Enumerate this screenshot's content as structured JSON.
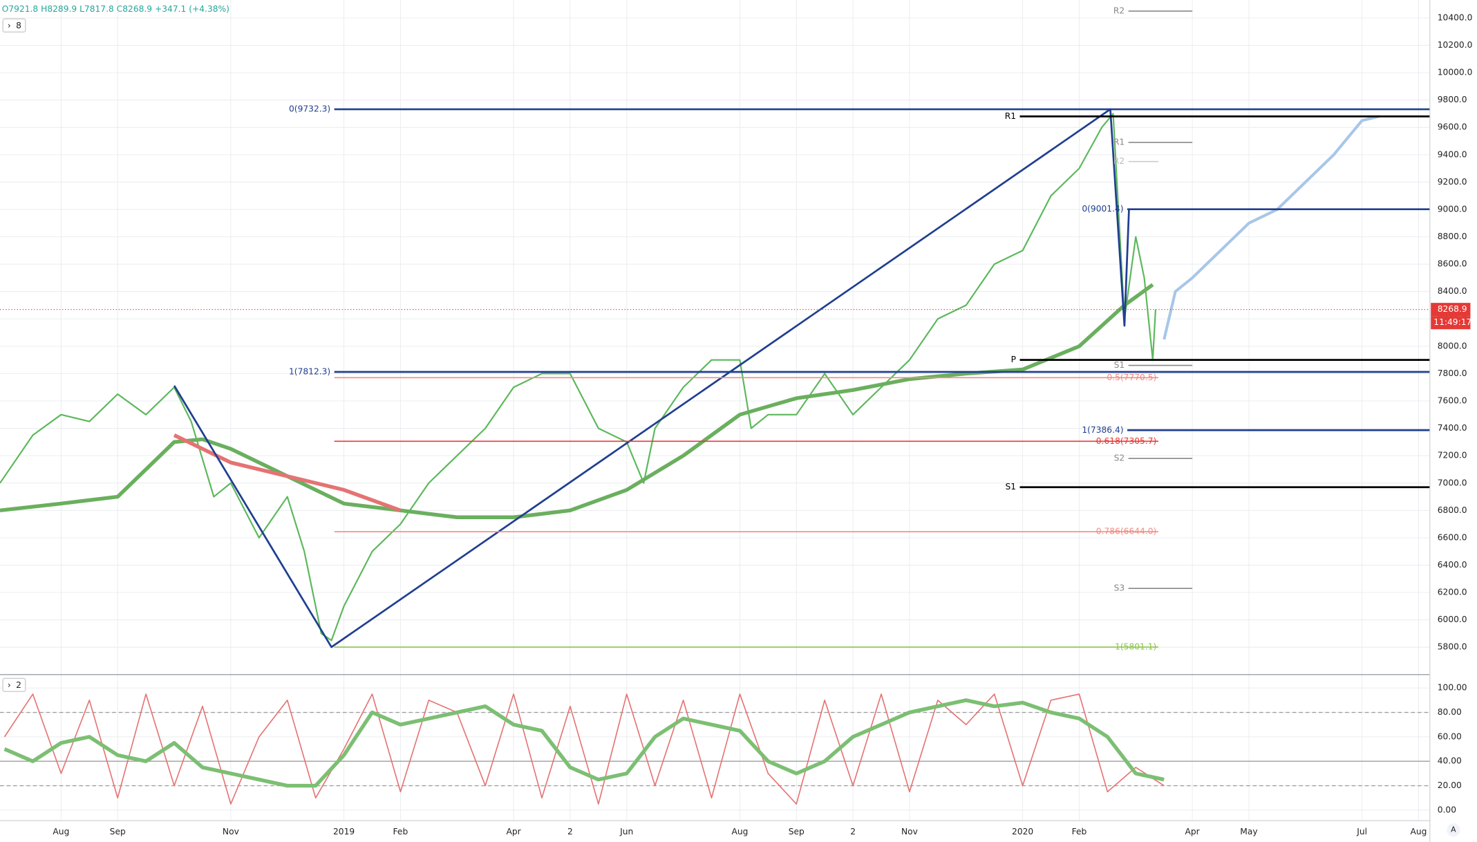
{
  "header": {
    "ohlc": "O7921.8 H8289.9 L7817.8 C8268.9 +347.1 (+4.38%)",
    "main_pane_badge": "8",
    "osc_pane_badge": "2",
    "clock": "11:49:17",
    "auto_button": "A"
  },
  "chart_data": [
    {
      "type": "line",
      "xlim": [
        -1.08,
        24.2
      ],
      "ylim": [
        5600,
        10531
      ],
      "xticks": [
        {
          "value": 0,
          "label": "Aug"
        },
        {
          "value": 1,
          "label": "Sep"
        },
        {
          "value": 3,
          "label": "Nov"
        },
        {
          "value": 5,
          "label": "2019"
        },
        {
          "value": 6,
          "label": "Feb"
        },
        {
          "value": 8,
          "label": "Apr"
        },
        {
          "value": 9,
          "label": "2"
        },
        {
          "value": 10,
          "label": "Jun"
        },
        {
          "value": 12,
          "label": "Aug"
        },
        {
          "value": 13,
          "label": "Sep"
        },
        {
          "value": 14,
          "label": "2"
        },
        {
          "value": 15,
          "label": "Nov"
        },
        {
          "value": 17,
          "label": "2020"
        },
        {
          "value": 18,
          "label": "Feb"
        },
        {
          "value": 20,
          "label": "Apr"
        },
        {
          "value": 21,
          "label": "May"
        },
        {
          "value": 23,
          "label": "Jul"
        },
        {
          "value": 24,
          "label": "Aug"
        }
      ],
      "yticks": [
        {
          "value": 5800,
          "label": "5800.0"
        },
        {
          "value": 6000,
          "label": "6000.0"
        },
        {
          "value": 6200,
          "label": "6200.0"
        },
        {
          "value": 6400,
          "label": "6400.0"
        },
        {
          "value": 6600,
          "label": "6600.0"
        },
        {
          "value": 6800,
          "label": "6800.0"
        },
        {
          "value": 7000,
          "label": "7000.0"
        },
        {
          "value": 7200,
          "label": "7200.0"
        },
        {
          "value": 7400,
          "label": "7400.0"
        },
        {
          "value": 7600,
          "label": "7600.0"
        },
        {
          "value": 7800,
          "label": "7800.0"
        },
        {
          "value": 8000,
          "label": "8000.0"
        },
        {
          "value": 8200,
          "label": "8200.0"
        },
        {
          "value": 8400,
          "label": "8400.0"
        },
        {
          "value": 8600,
          "label": "8600.0"
        },
        {
          "value": 8800,
          "label": "8800.0"
        },
        {
          "value": 9000,
          "label": "9000.0"
        },
        {
          "value": 9200,
          "label": "9200.0"
        },
        {
          "value": 9400,
          "label": "9400.0"
        },
        {
          "value": 9600,
          "label": "9600.0"
        },
        {
          "value": 9800,
          "label": "9800.0"
        },
        {
          "value": 10000,
          "label": "10000.0"
        },
        {
          "value": 10200,
          "label": "10200.0"
        },
        {
          "value": 10400,
          "label": "10400.0"
        }
      ],
      "grid": true,
      "series": [
        {
          "color": "#5cb85c",
          "width": 1.6,
          "x": [
            -1.08,
            -0.5,
            0,
            0.5,
            1,
            1.5,
            2,
            2.3,
            2.7,
            3,
            3.5,
            4,
            4.3,
            4.6,
            4.78,
            5,
            5.5,
            6,
            6.5,
            7,
            7.5,
            8,
            8.5,
            9,
            9.5,
            10,
            10.3,
            10.5,
            11,
            11.5,
            12,
            12.2,
            12.5,
            13,
            13.5,
            14,
            14.5,
            15,
            15.5,
            16,
            16.5,
            17,
            17.5,
            18,
            18.4,
            18.6,
            18.8,
            19,
            19.15,
            19.3,
            19.35
          ],
          "values": [
            7000,
            7350,
            7500,
            7450,
            7650,
            7500,
            7700,
            7450,
            6900,
            7000,
            6600,
            6900,
            6500,
            5900,
            5850,
            6100,
            6500,
            6700,
            7000,
            7200,
            7400,
            7700,
            7800,
            7800,
            7400,
            7300,
            7000,
            7400,
            7700,
            7900,
            7900,
            7400,
            7500,
            7500,
            7800,
            7500,
            7700,
            7900,
            8200,
            8300,
            8600,
            8700,
            9100,
            9300,
            9600,
            9700,
            8200,
            8800,
            8500,
            7900,
            8268.9
          ]
        },
        {
          "color": "#6aaf5e",
          "width": 4,
          "x": [
            -1.08,
            0,
            1,
            2,
            2.5,
            3,
            4,
            5,
            6,
            7,
            8,
            9,
            10,
            11,
            12,
            13,
            14,
            15,
            16,
            17,
            18,
            18.8,
            19.3
          ],
          "values": [
            6800,
            6850,
            6900,
            7300,
            7320,
            7250,
            7050,
            6850,
            6800,
            6750,
            6750,
            6800,
            6950,
            7200,
            7500,
            7620,
            7680,
            7760,
            7800,
            7830,
            8000,
            8300,
            8450
          ]
        },
        {
          "color": "#e57373",
          "width": 4,
          "x": [
            2,
            3,
            4,
            5,
            6
          ],
          "values": [
            7350,
            7150,
            7050,
            6950,
            6800
          ]
        },
        {
          "color": "#a8c6e8",
          "width": 3,
          "x": [
            19.5,
            19.7,
            20,
            20.5,
            21,
            21.5,
            22,
            22.5,
            23,
            23.3
          ],
          "values": [
            8050,
            8400,
            8500,
            8700,
            8900,
            9000,
            9200,
            9400,
            9650,
            9680
          ]
        },
        {
          "color": "#1f3f8f",
          "width": 2,
          "x": [
            2.0,
            4.78,
            18.55,
            18.8,
            18.88
          ],
          "values": [
            7712,
            5801.1,
            9732.3,
            8150,
            9001.4
          ]
        }
      ],
      "lines": [
        {
          "label": "0(9732.3)",
          "value": 9732.3,
          "color": "#1f3f8f",
          "x": [
            4.83,
            24.2
          ]
        },
        {
          "label": "1(7812.3)",
          "value": 7812.3,
          "color": "#1f3f8f",
          "x": [
            4.83,
            24.2
          ]
        },
        {
          "label": "0(9001.4)",
          "value": 9001.4,
          "color": "#1f3f8f",
          "x": [
            18.85,
            24.2
          ]
        },
        {
          "label": "1(7386.4)",
          "value": 7386.4,
          "color": "#1f3f8f",
          "x": [
            18.85,
            24.2
          ]
        },
        {
          "label": "0.5(7770.5)",
          "value": 7770.5,
          "color": "#f28b82",
          "x": [
            4.83,
            19.4
          ]
        },
        {
          "label": "0.618(7305.7)",
          "value": 7305.7,
          "color": "#e53935",
          "x": [
            4.83,
            19.4
          ]
        },
        {
          "label": "0.786(6644.0)",
          "value": 6644.0,
          "color": "#f28b82",
          "x": [
            4.83,
            19.4
          ]
        },
        {
          "label": "1(5801.1)",
          "value": 5801.1,
          "color": "#8bc34a",
          "x": [
            4.83,
            19.4
          ]
        },
        {
          "label": "R1",
          "value": 9680,
          "color": "#000000",
          "x": [
            16.95,
            24.2
          ]
        },
        {
          "label": "P",
          "value": 7900,
          "color": "#000000",
          "x": [
            16.95,
            24.2
          ]
        },
        {
          "label": "S1",
          "value": 6970,
          "color": "#000000",
          "x": [
            16.95,
            24.2
          ]
        },
        {
          "label": "R2",
          "value": 10450,
          "color": "#888888",
          "x": [
            18.87,
            20.0
          ]
        },
        {
          "label": "R1",
          "value": 9490,
          "color": "#888888",
          "x": [
            18.87,
            20.0
          ]
        },
        {
          "label": "R2",
          "value": 9350,
          "color": "#cccccc",
          "x": [
            18.87,
            19.4
          ]
        },
        {
          "label": "S1",
          "value": 7860,
          "color": "#888888",
          "x": [
            18.87,
            20.0
          ]
        },
        {
          "label": "S2",
          "value": 7180,
          "color": "#888888",
          "x": [
            18.87,
            20.0
          ]
        },
        {
          "label": "S3",
          "value": 6230,
          "color": "#888888",
          "x": [
            18.87,
            20.0
          ]
        }
      ],
      "last_price": {
        "value": 8268.9,
        "label": "8268.9",
        "color": "#e53935"
      }
    },
    {
      "type": "line",
      "xlim": [
        -1.08,
        24.2
      ],
      "ylim": [
        -8.6,
        110.2
      ],
      "yticks": [
        {
          "value": 0,
          "label": "0.00"
        },
        {
          "value": 20,
          "label": "20.00"
        },
        {
          "value": 40,
          "label": "40.00"
        },
        {
          "value": 60,
          "label": "60.00"
        },
        {
          "value": 80,
          "label": "80.00"
        },
        {
          "value": 100,
          "label": "100.00"
        }
      ],
      "levels": [
        20,
        40,
        80
      ],
      "series": [
        {
          "color": "#e57373",
          "width": 1.2,
          "x": [
            -1,
            -0.5,
            0,
            0.5,
            1,
            1.5,
            2,
            2.5,
            3,
            3.5,
            4,
            4.5,
            5,
            5.5,
            6,
            6.5,
            7,
            7.5,
            8,
            8.5,
            9,
            9.5,
            10,
            10.5,
            11,
            11.5,
            12,
            12.5,
            13,
            13.5,
            14,
            14.5,
            15,
            15.5,
            16,
            16.5,
            17,
            17.5,
            18,
            18.5,
            19,
            19.5
          ],
          "values": [
            60,
            95,
            30,
            90,
            10,
            95,
            20,
            85,
            5,
            60,
            90,
            10,
            50,
            95,
            15,
            90,
            80,
            20,
            95,
            10,
            85,
            5,
            95,
            20,
            90,
            10,
            95,
            30,
            5,
            90,
            20,
            95,
            15,
            90,
            70,
            95,
            20,
            90,
            95,
            15,
            35,
            20
          ]
        },
        {
          "color": "#7cbf73",
          "width": 4,
          "x": [
            -1,
            -0.5,
            0,
            0.5,
            1,
            1.5,
            2,
            2.5,
            3,
            3.5,
            4,
            4.5,
            5,
            5.5,
            6,
            6.5,
            7,
            7.5,
            8,
            8.5,
            9,
            9.5,
            10,
            10.5,
            11,
            11.5,
            12,
            12.5,
            13,
            13.5,
            14,
            14.5,
            15,
            15.5,
            16,
            16.5,
            17,
            17.5,
            18,
            18.5,
            19,
            19.5
          ],
          "values": [
            50,
            40,
            55,
            60,
            45,
            40,
            55,
            35,
            30,
            25,
            20,
            20,
            45,
            80,
            70,
            75,
            80,
            85,
            70,
            65,
            35,
            25,
            30,
            60,
            75,
            70,
            65,
            40,
            30,
            40,
            60,
            70,
            80,
            85,
            90,
            85,
            88,
            80,
            75,
            60,
            30,
            25
          ]
        }
      ]
    }
  ]
}
